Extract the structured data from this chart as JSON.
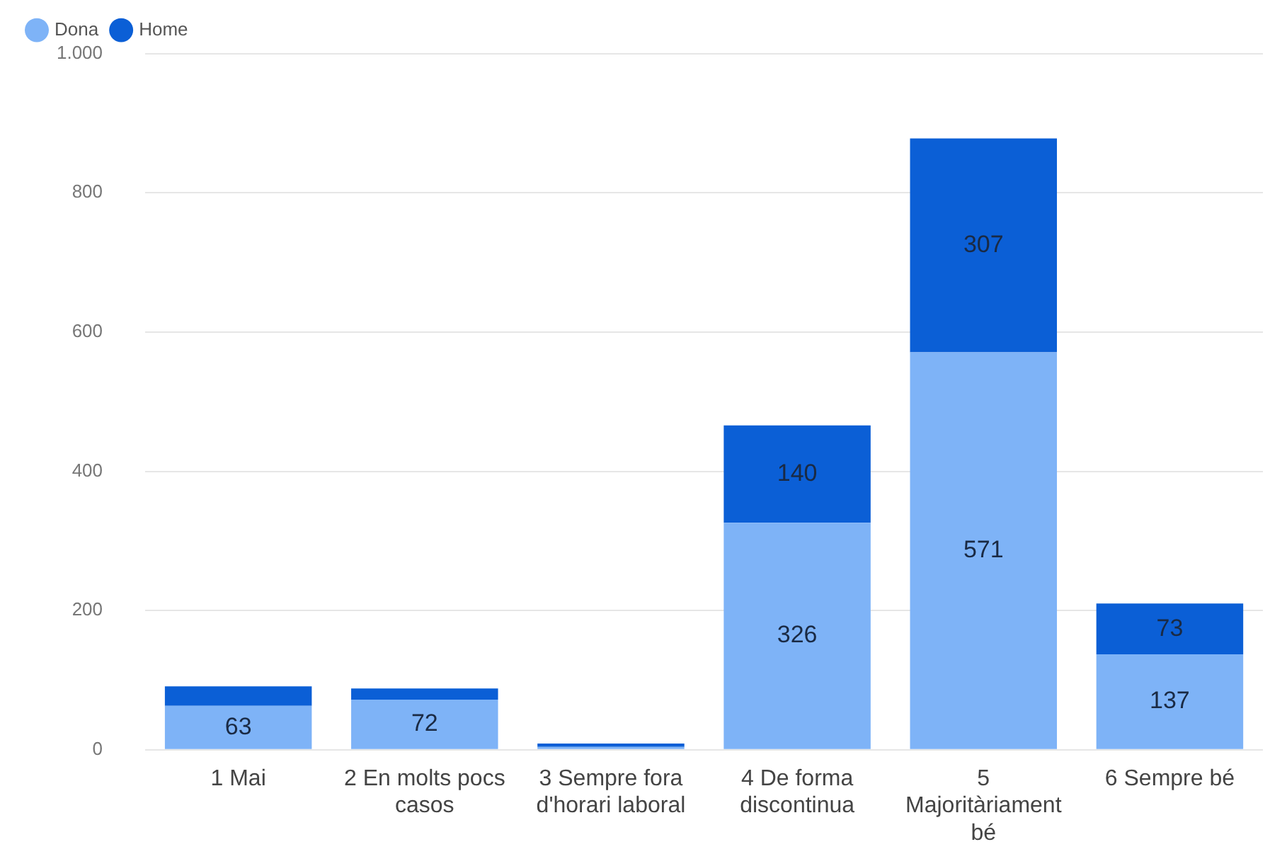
{
  "chart_data": {
    "type": "bar",
    "stacked": true,
    "categories": [
      "1 Mai",
      "2 En molts pocs casos",
      "3 Sempre fora d'horari laboral",
      "4 De forma discontinua",
      "5 Majoritàriament bé",
      "6 Sempre bé"
    ],
    "series": [
      {
        "name": "Dona",
        "color": "#7eb3f7",
        "values": [
          63,
          72,
          4,
          326,
          571,
          137
        ],
        "value_labels": [
          "63",
          "72",
          null,
          "326",
          "571",
          "137"
        ]
      },
      {
        "name": "Home",
        "color": "#0b5fd6",
        "values": [
          28,
          16,
          5,
          140,
          307,
          73
        ],
        "value_labels": [
          null,
          null,
          null,
          "140",
          "307",
          "73"
        ]
      }
    ],
    "ylim": [
      0,
      1000
    ],
    "yticks": [
      0,
      200,
      400,
      600,
      800,
      {
        "value": 1000,
        "label": "1.000"
      }
    ],
    "grid": "y",
    "legend": "top left"
  }
}
